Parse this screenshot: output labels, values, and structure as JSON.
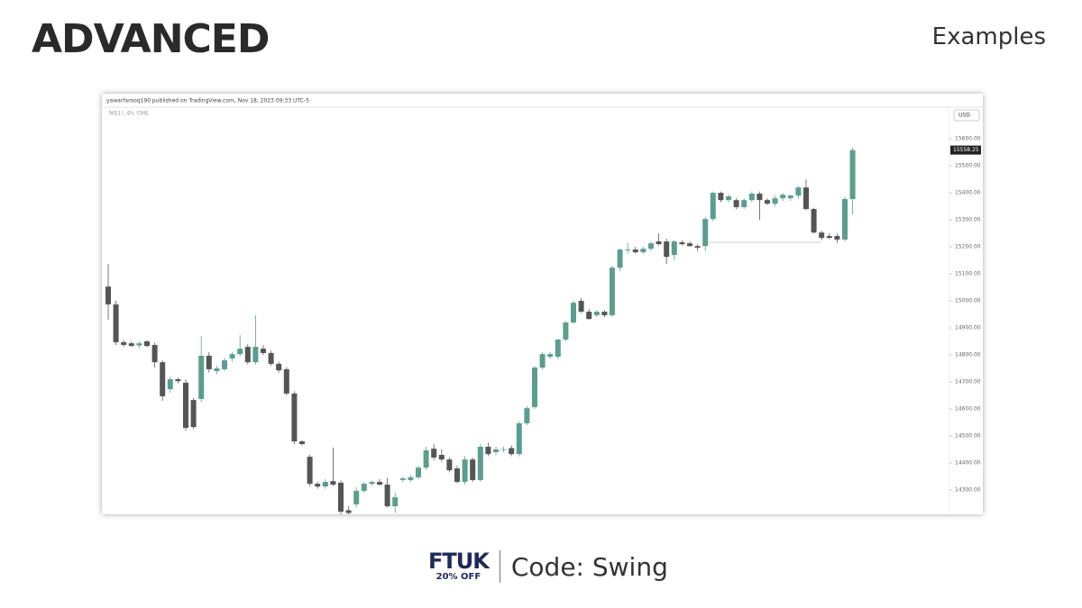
{
  "header": {
    "title": "ADVANCED",
    "section": "Examples"
  },
  "chart_data": {
    "type": "candlestick",
    "attribution": "yawarfarooq190 published on TradingView.com, Nov 18, 2023 09:33 UTC-5",
    "symbol": "NQ1!, 4h, CME",
    "currency": "USD",
    "up_color": "#5b9e8f",
    "down_color": "#555555",
    "ylim": [
      14210,
      15717
    ],
    "yticks": [
      {
        "value": 14300,
        "label": "14300.00"
      },
      {
        "value": 14400,
        "label": "14400.00"
      },
      {
        "value": 14500,
        "label": "14500.00"
      },
      {
        "value": 14600,
        "label": "14600.00"
      },
      {
        "value": 14700,
        "label": "14700.00"
      },
      {
        "value": 14800,
        "label": "14800.00"
      },
      {
        "value": 14900,
        "label": "14900.00"
      },
      {
        "value": 15000,
        "label": "15000.00"
      },
      {
        "value": 15100,
        "label": "15100.00"
      },
      {
        "value": 15200,
        "label": "15200.00"
      },
      {
        "value": 15300,
        "label": "15300.00"
      },
      {
        "value": 15400,
        "label": "15400.00"
      },
      {
        "value": 15500,
        "label": "15500.00"
      },
      {
        "value": 15600,
        "label": "15600.00"
      }
    ],
    "open": [
      15053,
      14987,
      14847,
      14843,
      14835,
      14850,
      14837,
      14773,
      14673,
      14710,
      14697,
      14633,
      14637,
      14797,
      14740,
      14747,
      14787,
      14803,
      14830,
      14773,
      14823,
      14807,
      14767,
      14747,
      14657,
      14480,
      14423,
      14323,
      14313,
      14333,
      14327,
      14225,
      14247,
      14297,
      14323,
      14330,
      14320,
      14240,
      14337,
      14337,
      14347,
      14383,
      14453,
      14430,
      14413,
      14380,
      14330,
      14413,
      14337,
      14460,
      14440,
      14450,
      14455,
      14433,
      14547,
      14607,
      14753,
      14793,
      14793,
      14857,
      14920,
      15000,
      14960,
      14947,
      14960,
      14947,
      15123,
      15187,
      15190,
      15180,
      15193,
      15220,
      15220,
      15170,
      15217,
      15213,
      15203,
      15203,
      15303,
      15400,
      15373,
      15373,
      15347,
      15373,
      15397,
      15373,
      15360,
      15380,
      15380,
      15390,
      15420,
      15340,
      15253,
      15240,
      15240,
      15227,
      15377
    ],
    "high": [
      15137,
      15000,
      14855,
      14850,
      14850,
      14855,
      14845,
      14780,
      14720,
      14715,
      14710,
      14640,
      14870,
      14810,
      14760,
      14790,
      14810,
      14873,
      14840,
      14947,
      14835,
      14815,
      14775,
      14755,
      14665,
      14485,
      14430,
      14330,
      14340,
      14457,
      14335,
      14240,
      14310,
      14330,
      14335,
      14340,
      14345,
      14290,
      14350,
      14355,
      14390,
      14460,
      14470,
      14450,
      14420,
      14390,
      14425,
      14420,
      14470,
      14475,
      14460,
      14460,
      14465,
      14555,
      14610,
      14760,
      14810,
      14810,
      14860,
      14925,
      15000,
      15010,
      14970,
      14965,
      14965,
      15130,
      15195,
      15215,
      15200,
      15200,
      15220,
      15250,
      15230,
      15225,
      15225,
      15220,
      15210,
      15310,
      15405,
      15405,
      15395,
      15380,
      15380,
      15405,
      15405,
      15380,
      15390,
      15400,
      15395,
      15425,
      15450,
      15345,
      15260,
      15250,
      15250,
      15385,
      15567
    ],
    "low": [
      14930,
      14837,
      14830,
      14830,
      14825,
      14828,
      14753,
      14630,
      14660,
      14695,
      14520,
      14525,
      14625,
      14735,
      14730,
      14740,
      14775,
      14795,
      14765,
      14765,
      14800,
      14760,
      14735,
      14650,
      14470,
      14465,
      14315,
      14305,
      14305,
      14315,
      14210,
      14210,
      14235,
      14290,
      14315,
      14315,
      14235,
      14215,
      14330,
      14330,
      14340,
      14375,
      14410,
      14405,
      14365,
      14325,
      14320,
      14330,
      14330,
      14425,
      14430,
      14440,
      14425,
      14425,
      14540,
      14600,
      14745,
      14785,
      14785,
      14850,
      14915,
      14955,
      14930,
      14940,
      14940,
      14940,
      15110,
      15175,
      15175,
      15175,
      15185,
      15205,
      15137,
      15150,
      15205,
      15200,
      15185,
      15185,
      15295,
      15365,
      15365,
      15340,
      15340,
      15365,
      15300,
      15355,
      15350,
      15370,
      15370,
      15380,
      15335,
      15250,
      15225,
      15230,
      15215,
      15220,
      15320
    ],
    "close": [
      14987,
      14847,
      14837,
      14833,
      14843,
      14833,
      14773,
      14647,
      14710,
      14703,
      14530,
      14533,
      14797,
      14747,
      14750,
      14780,
      14803,
      14823,
      14773,
      14830,
      14807,
      14767,
      14743,
      14657,
      14480,
      14470,
      14323,
      14313,
      14330,
      14320,
      14220,
      14215,
      14297,
      14323,
      14330,
      14320,
      14240,
      14273,
      14343,
      14347,
      14383,
      14447,
      14420,
      14413,
      14373,
      14330,
      14413,
      14337,
      14460,
      14433,
      14450,
      14451,
      14433,
      14547,
      14603,
      14753,
      14803,
      14803,
      14857,
      14920,
      14993,
      14960,
      14933,
      14960,
      14947,
      15123,
      15190,
      15190,
      15180,
      15193,
      15213,
      15210,
      15163,
      15220,
      15210,
      15203,
      15197,
      15303,
      15400,
      15373,
      15387,
      15347,
      15373,
      15397,
      15373,
      15360,
      15380,
      15393,
      15390,
      15420,
      15340,
      15253,
      15233,
      15233,
      15227,
      15377,
      15558.25
    ]
  },
  "footer": {
    "brand": "FTUK",
    "discount": "20% OFF",
    "code": "Code: Swing"
  }
}
